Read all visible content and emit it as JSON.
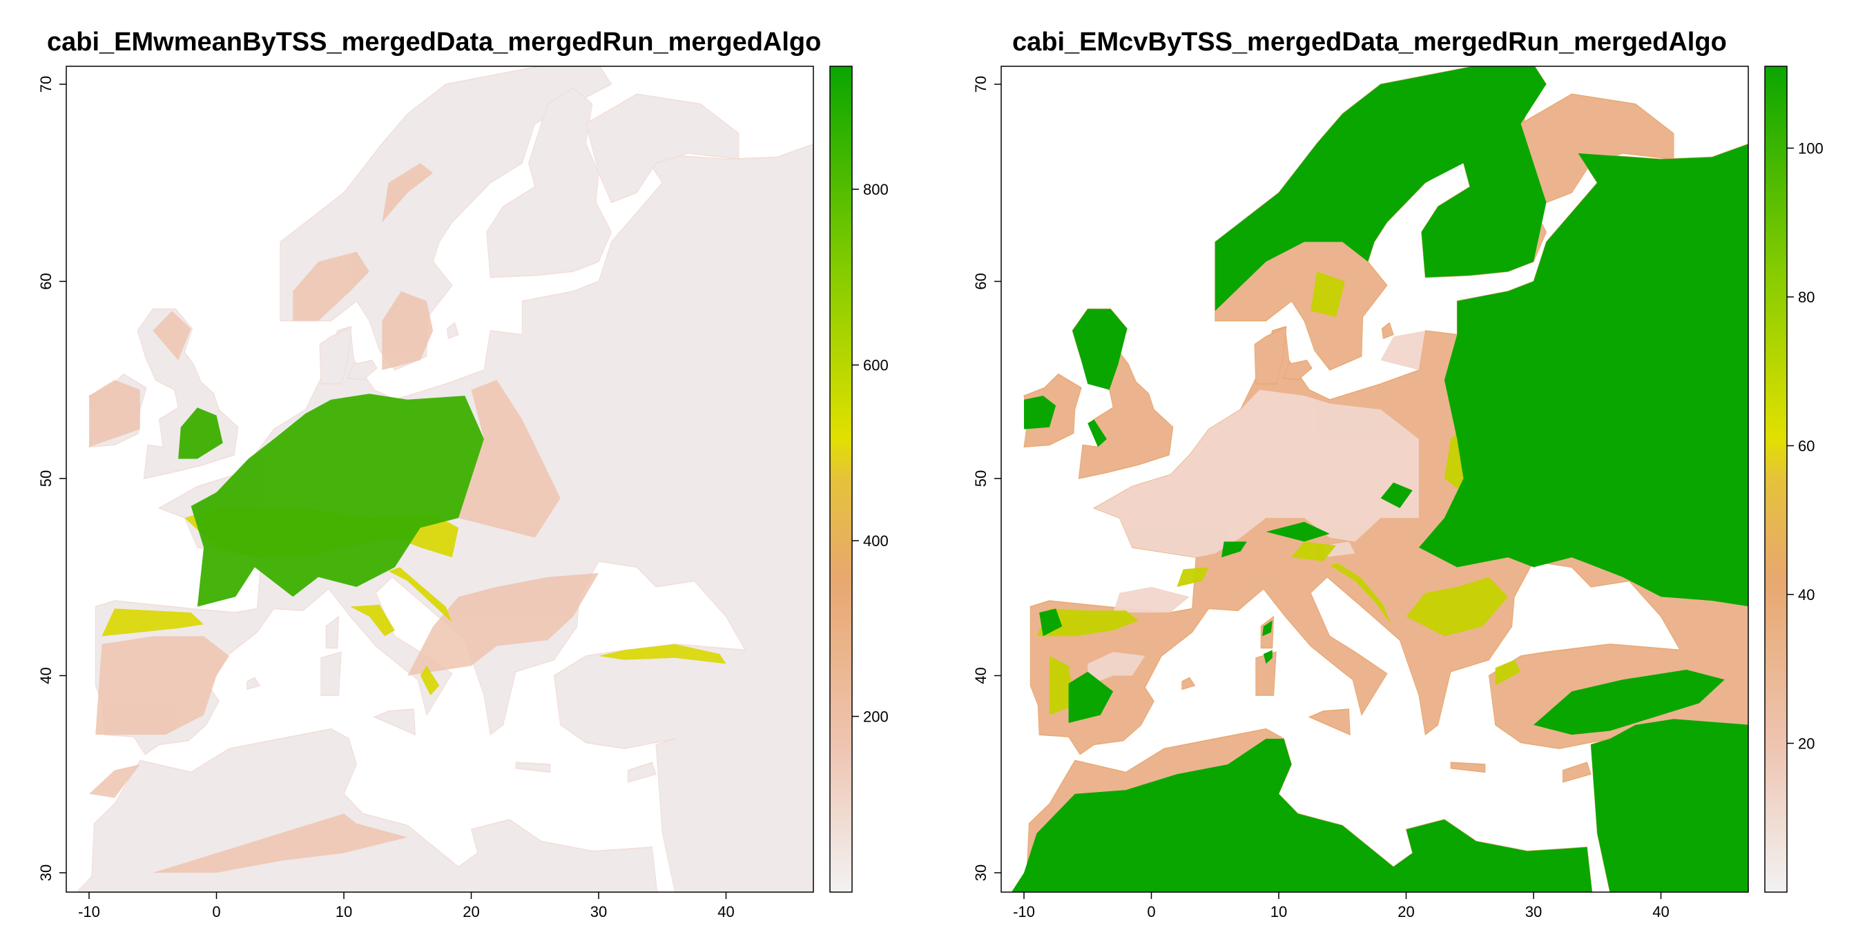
{
  "panels": [
    {
      "title": "cabi_EMwmeanByTSS_mergedData_mergedRun_mergedAlgo",
      "x_ticks": [
        "-10",
        "0",
        "10",
        "20",
        "30",
        "40"
      ],
      "y_ticks": [
        "30",
        "40",
        "50",
        "60",
        "70"
      ],
      "legend_ticks": [
        "200",
        "400",
        "600",
        "800"
      ],
      "legend_range": [
        0,
        940
      ],
      "legend_colors": [
        "#f2f2f2",
        "#eec4b0",
        "#e8a86f",
        "#e5c23a",
        "#e1e000",
        "#86cc00",
        "#0aa600"
      ]
    },
    {
      "title": "cabi_EMcvByTSS_mergedData_mergedRun_mergedAlgo",
      "x_ticks": [
        "-10",
        "0",
        "10",
        "20",
        "30",
        "40"
      ],
      "y_ticks": [
        "30",
        "40",
        "50",
        "60",
        "70"
      ],
      "legend_ticks": [
        "20",
        "40",
        "60",
        "80",
        "100"
      ],
      "legend_range": [
        0,
        111
      ],
      "legend_colors": [
        "#f2f2f2",
        "#eec4b0",
        "#e8a86f",
        "#e5c23a",
        "#e1e000",
        "#86cc00",
        "#0aa600"
      ]
    }
  ],
  "chart_data": [
    {
      "type": "heatmap",
      "title": "cabi_EMwmeanByTSS_mergedData_mergedRun_mergedAlgo",
      "xlabel": "",
      "ylabel": "",
      "xlim": [
        -11,
        47
      ],
      "ylim": [
        29,
        71
      ],
      "color_scale_ticks": [
        200,
        400,
        600,
        800
      ],
      "color_scale_range": [
        0,
        940
      ]
    },
    {
      "type": "heatmap",
      "title": "cabi_EMcvByTSS_mergedData_mergedRun_mergedAlgo",
      "xlabel": "",
      "ylabel": "",
      "xlim": [
        -11,
        47
      ],
      "ylim": [
        29,
        71
      ],
      "color_scale_ticks": [
        20,
        40,
        60,
        80,
        100
      ],
      "color_scale_range": [
        0,
        111
      ]
    }
  ]
}
